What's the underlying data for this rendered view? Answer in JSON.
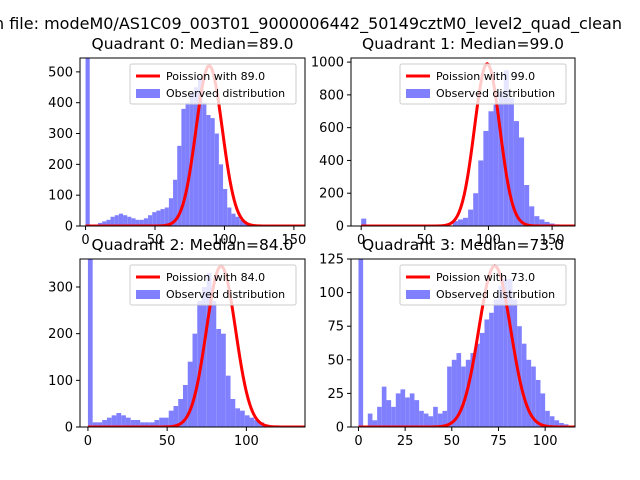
{
  "figure": {
    "suptitle": "n file: modeM0/AS1C09_003T01_9000006442_50149cztM0_level2_quad_clean"
  },
  "chart_data": [
    {
      "type": "bar",
      "title": "Quadrant 0: Median=89.0",
      "xlim": [
        -4,
        158
      ],
      "ylim": [
        0,
        545
      ],
      "xticks": [
        0,
        50,
        100,
        150
      ],
      "yticks": [
        0,
        100,
        200,
        300,
        400,
        500
      ],
      "bin_width": 3,
      "bin_start": 0,
      "hist_counts": [
        545,
        0,
        5,
        10,
        15,
        20,
        30,
        35,
        40,
        35,
        30,
        25,
        20,
        20,
        25,
        35,
        45,
        50,
        55,
        60,
        90,
        150,
        260,
        380,
        400,
        430,
        450,
        480,
        400,
        360,
        350,
        300,
        200,
        120,
        60,
        40,
        30,
        20,
        10,
        5,
        3,
        2,
        1,
        0,
        0,
        0,
        0,
        0,
        0,
        0,
        0,
        0,
        0
      ],
      "poisson_lambda": 89.0,
      "poisson_peak": 520,
      "colors": {
        "hist": "#8080ff",
        "line": "#ff0000"
      },
      "legend": {
        "line_label": "Poission with 89.0",
        "bar_label": "Observed distribution",
        "location": "upper right"
      }
    },
    {
      "type": "bar",
      "title": "Quadrant 1: Median=99.0",
      "xlim": [
        -8,
        168
      ],
      "ylim": [
        0,
        1025
      ],
      "xticks": [
        0,
        50,
        100,
        150
      ],
      "yticks": [
        0,
        200,
        400,
        600,
        800,
        1000
      ],
      "bin_width": 4,
      "bin_start": 0,
      "hist_counts": [
        45,
        0,
        0,
        0,
        0,
        0,
        0,
        0,
        0,
        0,
        0,
        0,
        0,
        0,
        0,
        0,
        0,
        0,
        30,
        40,
        50,
        100,
        200,
        400,
        580,
        700,
        740,
        820,
        950,
        780,
        640,
        540,
        250,
        120,
        60,
        40,
        25,
        15,
        10,
        8,
        6,
        4
      ],
      "poisson_lambda": 99.0,
      "poisson_peak": 990,
      "colors": {
        "hist": "#8080ff",
        "line": "#ff0000"
      },
      "legend": {
        "line_label": "Poission with 99.0",
        "bar_label": "Observed distribution",
        "location": "upper right"
      }
    },
    {
      "type": "bar",
      "title": "Quadrant 2: Median=84.0",
      "xlim": [
        -5,
        137
      ],
      "ylim": [
        0,
        360
      ],
      "xticks": [
        0,
        50,
        100
      ],
      "yticks": [
        0,
        100,
        200,
        300
      ],
      "bin_width": 3,
      "bin_start": 0,
      "hist_counts": [
        360,
        10,
        10,
        15,
        20,
        25,
        30,
        25,
        20,
        15,
        15,
        10,
        10,
        10,
        15,
        20,
        20,
        35,
        45,
        60,
        90,
        140,
        200,
        270,
        300,
        330,
        270,
        210,
        200,
        110,
        60,
        40,
        35,
        25,
        20,
        15,
        10,
        5,
        3,
        2,
        1,
        0,
        0,
        0,
        0
      ],
      "poisson_lambda": 84.0,
      "poisson_peak": 345,
      "colors": {
        "hist": "#8080ff",
        "line": "#ff0000"
      },
      "legend": {
        "line_label": "Poission with 84.0",
        "bar_label": "Observed distribution",
        "location": "upper right"
      }
    },
    {
      "type": "bar",
      "title": "Quadrant 3: Median=73.0",
      "xlim": [
        -4,
        116
      ],
      "ylim": [
        0,
        125
      ],
      "xticks": [
        0,
        25,
        50,
        75,
        100
      ],
      "yticks": [
        0,
        25,
        50,
        75,
        100,
        125
      ],
      "bin_width": 2.5,
      "bin_start": 0,
      "hist_counts": [
        125,
        0,
        10,
        5,
        15,
        30,
        20,
        15,
        25,
        28,
        22,
        25,
        20,
        12,
        10,
        8,
        15,
        10,
        12,
        45,
        50,
        55,
        45,
        50,
        55,
        62,
        70,
        80,
        85,
        95,
        105,
        110,
        110,
        95,
        75,
        62,
        50,
        45,
        35,
        25,
        12,
        8,
        5,
        3,
        2
      ],
      "poisson_lambda": 73.0,
      "poisson_peak": 120,
      "colors": {
        "hist": "#8080ff",
        "line": "#ff0000"
      },
      "legend": {
        "line_label": "Poission with 73.0",
        "bar_label": "Observed distribution",
        "location": "upper right"
      }
    }
  ]
}
